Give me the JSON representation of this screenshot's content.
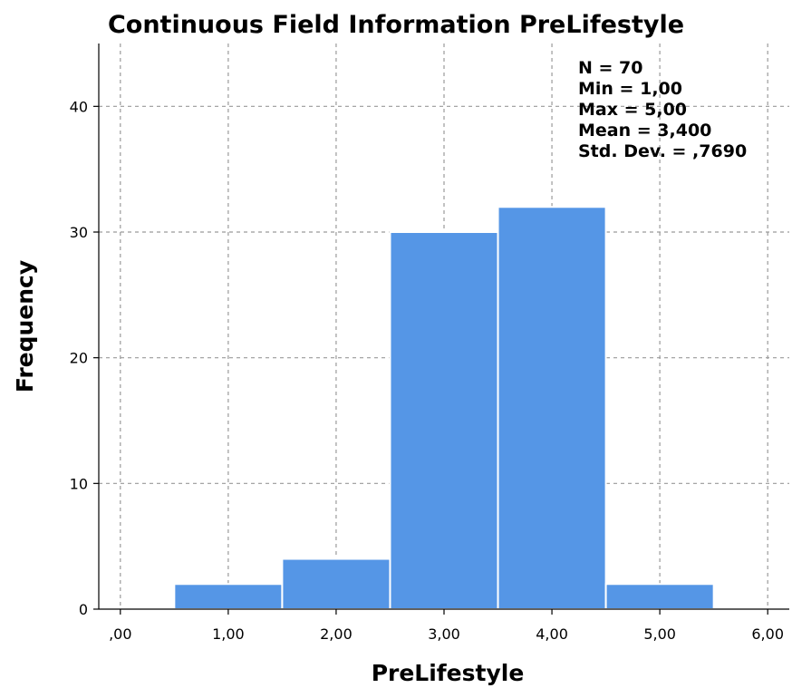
{
  "chart_data": {
    "type": "bar",
    "title": "Continuous Field Information PreLifestyle",
    "xlabel": "PreLifestyle",
    "ylabel": "Frequency",
    "ylim": [
      0,
      45
    ],
    "xlim": [
      -0.2,
      6.2
    ],
    "x_ticks": [
      ",00",
      "1,00",
      "2,00",
      "3,00",
      "4,00",
      "5,00",
      "6,00"
    ],
    "y_ticks": [
      "0",
      "10",
      "20",
      "30",
      "40"
    ],
    "grid": true,
    "categories": [
      "1,00",
      "2,00",
      "3,00",
      "4,00",
      "5,00"
    ],
    "values": [
      2,
      4,
      30,
      32,
      2
    ],
    "bar_centers": [
      1,
      2,
      3,
      4,
      5
    ],
    "stats": [
      "N = 70",
      "Min = 1,00",
      "Max = 5,00",
      "Mean = 3,400",
      "Std. Dev. = ,7690"
    ],
    "stats_placement": "top-right",
    "bar_color": "#5596e6"
  }
}
